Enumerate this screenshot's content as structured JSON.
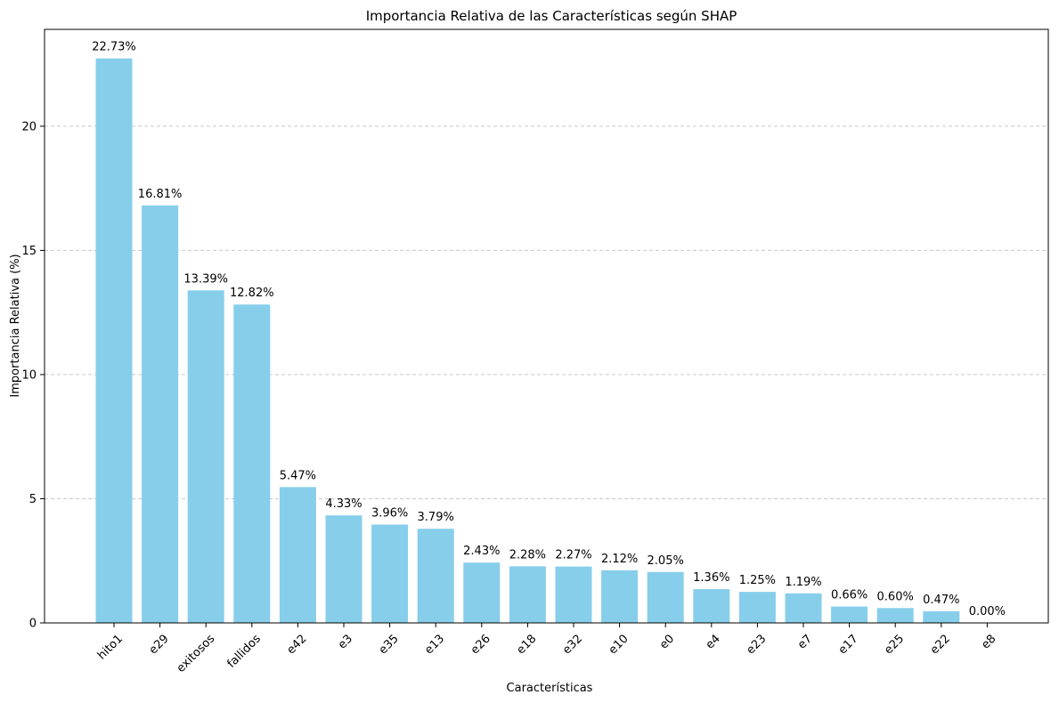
{
  "chart_data": {
    "type": "bar",
    "title": "Importancia Relativa de las Características según SHAP",
    "xlabel": "Características",
    "ylabel": "Importancia Relativa (%)",
    "categories": [
      "hito1",
      "e29",
      "exitosos",
      "fallidos",
      "e42",
      "e3",
      "e35",
      "e13",
      "e26",
      "e18",
      "e32",
      "e10",
      "e0",
      "e4",
      "e23",
      "e7",
      "e17",
      "e25",
      "e22",
      "e8"
    ],
    "values": [
      22.73,
      16.81,
      13.39,
      12.82,
      5.47,
      4.33,
      3.96,
      3.79,
      2.43,
      2.28,
      2.27,
      2.12,
      2.05,
      1.36,
      1.25,
      1.19,
      0.66,
      0.6,
      0.47,
      0.0
    ],
    "data_labels": [
      "22.73%",
      "16.81%",
      "13.39%",
      "12.82%",
      "5.47%",
      "4.33%",
      "3.96%",
      "3.79%",
      "2.43%",
      "2.28%",
      "2.27%",
      "2.12%",
      "2.05%",
      "1.36%",
      "1.25%",
      "1.19%",
      "0.66%",
      "0.60%",
      "0.47%",
      "0.00%"
    ],
    "ylim": [
      0,
      23.9
    ],
    "yticks": [
      0,
      5,
      10,
      15,
      20
    ],
    "grid": "y-dashed",
    "bar_color": "#87CEEB"
  }
}
